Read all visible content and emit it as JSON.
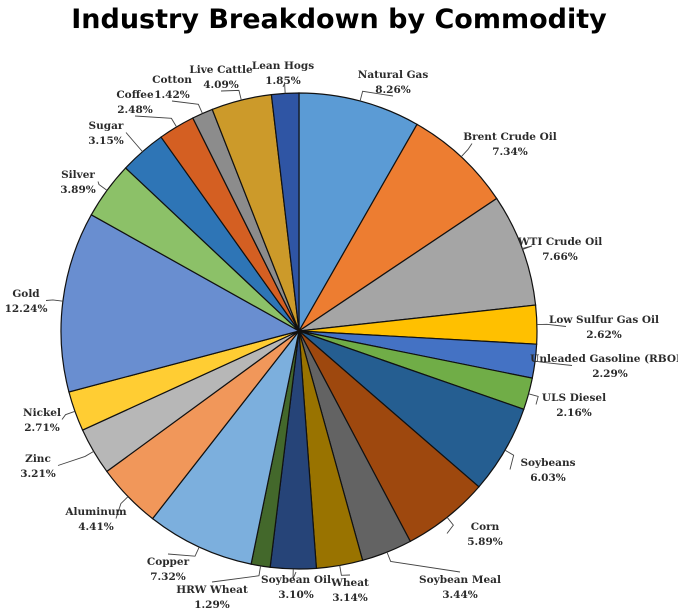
{
  "chart_data": {
    "type": "pie",
    "title": "Industry Breakdown by Commodity",
    "slices": [
      {
        "label": "Natural Gas",
        "value": 8.26,
        "display": "8.26%",
        "color": "#5B9BD5"
      },
      {
        "label": "Brent Crude Oil",
        "value": 7.34,
        "display": "7.34%",
        "color": "#ED7D31"
      },
      {
        "label": "WTI Crude Oil",
        "value": 7.66,
        "display": "7.66%",
        "color": "#A5A5A5"
      },
      {
        "label": "Low Sulfur Gas Oil",
        "value": 2.62,
        "display": "2.62%",
        "color": "#FFC000"
      },
      {
        "label": "Unleaded Gasoline (RBOB)",
        "value": 2.29,
        "display": "2.29%",
        "color": "#4472C4"
      },
      {
        "label": "ULS Diesel",
        "value": 2.16,
        "display": "2.16%",
        "color": "#70AD47"
      },
      {
        "label": "Soybeans",
        "value": 6.03,
        "display": "6.03%",
        "color": "#255E91"
      },
      {
        "label": "Corn",
        "value": 5.89,
        "display": "5.89%",
        "color": "#9E480E"
      },
      {
        "label": "Soybean Meal",
        "value": 3.44,
        "display": "3.44%",
        "color": "#636363"
      },
      {
        "label": "Wheat",
        "value": 3.14,
        "display": "3.14%",
        "color": "#997300"
      },
      {
        "label": "Soybean Oil",
        "value": 3.1,
        "display": "3.10%",
        "color": "#264478"
      },
      {
        "label": "HRW Wheat",
        "value": 1.29,
        "display": "1.29%",
        "color": "#43682B"
      },
      {
        "label": "Copper",
        "value": 7.32,
        "display": "7.32%",
        "color": "#7CAFDD"
      },
      {
        "label": "Aluminum",
        "value": 4.41,
        "display": "4.41%",
        "color": "#F1975A"
      },
      {
        "label": "Zinc",
        "value": 3.21,
        "display": "3.21%",
        "color": "#B7B7B7"
      },
      {
        "label": "Nickel",
        "value": 2.71,
        "display": "2.71%",
        "color": "#FFCD33"
      },
      {
        "label": "Gold",
        "value": 12.24,
        "display": "12.24%",
        "color": "#698ED0"
      },
      {
        "label": "Silver",
        "value": 3.89,
        "display": "3.89%",
        "color": "#8CC168"
      },
      {
        "label": "Sugar",
        "value": 3.15,
        "display": "3.15%",
        "color": "#2E75B6"
      },
      {
        "label": "Coffee",
        "value": 2.48,
        "display": "2.48%",
        "color": "#D45F22"
      },
      {
        "label": "Cotton",
        "value": 1.42,
        "display": "1.42%",
        "color": "#8C8C8C"
      },
      {
        "label": "Live Cattle",
        "value": 4.09,
        "display": "4.09%",
        "color": "#CC9A2A"
      },
      {
        "label": "Lean Hogs",
        "value": 1.85,
        "display": "1.85%",
        "color": "#2F55A4"
      }
    ]
  }
}
